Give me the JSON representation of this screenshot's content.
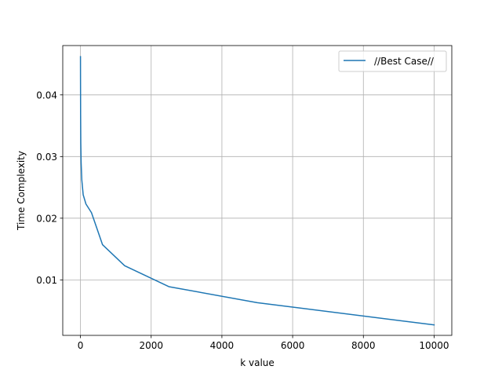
{
  "chart_data": {
    "type": "line",
    "xlabel": "k value",
    "ylabel": "Time Complexity",
    "xlim": [
      -500,
      10500
    ],
    "ylim": [
      0.001,
      0.048
    ],
    "xticks": [
      0,
      2000,
      4000,
      6000,
      8000,
      10000
    ],
    "xtick_labels": [
      "0",
      "2000",
      "4000",
      "6000",
      "8000",
      "10000"
    ],
    "yticks": [
      0.01,
      0.02,
      0.03,
      0.04
    ],
    "ytick_labels": [
      "0.01",
      "0.02",
      "0.03",
      "0.04"
    ],
    "grid": true,
    "legend_position": "top-right",
    "series": [
      {
        "name": "//Best Case//",
        "color": "#1f77b4",
        "x": [
          1,
          2,
          5,
          10,
          20,
          39,
          78,
          156,
          312,
          625,
          1250,
          2500,
          5000,
          10000
        ],
        "y": [
          0.0462,
          0.0428,
          0.0368,
          0.0322,
          0.0289,
          0.0262,
          0.0238,
          0.0223,
          0.0209,
          0.0157,
          0.0123,
          0.0089,
          0.0063,
          0.0027
        ]
      }
    ]
  }
}
